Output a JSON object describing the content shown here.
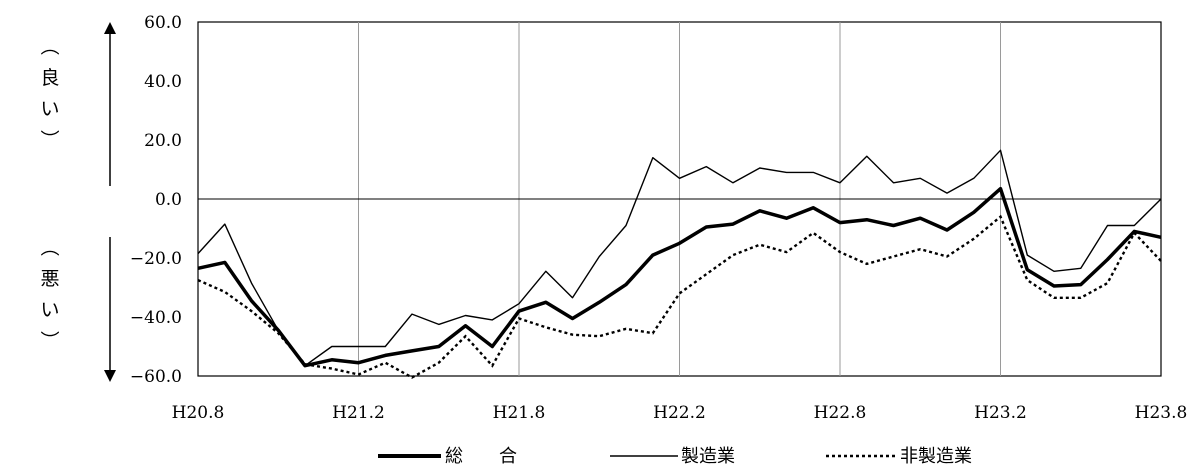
{
  "chart_data": {
    "type": "line",
    "side_label_top": "（良い）",
    "side_label_bottom": "（悪い）",
    "ylim": [
      -60,
      60
    ],
    "ytick_values": [
      60,
      40,
      20,
      0,
      -20,
      -40,
      -60
    ],
    "ytick_labels": [
      "60.0",
      "40.0",
      "20.0",
      "0.0",
      "−20.0",
      "−40.0",
      "−60.0"
    ],
    "xtick_labels": [
      "H20.8",
      "H21.2",
      "H21.8",
      "H22.2",
      "H22.8",
      "H23.2",
      "H23.8"
    ],
    "x_count": 37,
    "grid": "vertical",
    "legend_position": "bottom",
    "series": [
      {
        "name": "総　　合",
        "style": "thick",
        "values": [
          -23.5,
          -21.5,
          -34.5,
          -44.5,
          -56.5,
          -54.5,
          -55.5,
          -53.0,
          -51.5,
          -50.0,
          -43.0,
          -50.0,
          -38.0,
          -35.0,
          -40.5,
          -35.0,
          -29.0,
          -19.0,
          -15.0,
          -9.5,
          -8.5,
          -4.0,
          -6.5,
          -3.0,
          -8.0,
          -7.0,
          -9.0,
          -6.5,
          -10.5,
          -4.5,
          3.5,
          -24.0,
          -29.5,
          -29.0,
          -20.5,
          -11.0,
          -13.0
        ]
      },
      {
        "name": "製造業",
        "style": "thin",
        "values": [
          -18.5,
          -8.5,
          -28.5,
          -44.5,
          -56.5,
          -50.0,
          -50.0,
          -50.0,
          -39.0,
          -42.5,
          -39.5,
          -41.0,
          -35.5,
          -24.5,
          -33.5,
          -19.5,
          -9.0,
          14.0,
          7.0,
          11.0,
          5.5,
          10.5,
          9.0,
          9.0,
          5.5,
          14.5,
          5.5,
          7.0,
          2.0,
          7.0,
          16.5,
          -19.0,
          -24.5,
          -23.5,
          -9.0,
          -9.0,
          0.0
        ]
      },
      {
        "name": "非製造業",
        "style": "dotted",
        "values": [
          -27.5,
          -31.5,
          -38.0,
          -45.5,
          -56.0,
          -57.5,
          -59.5,
          -55.5,
          -60.5,
          -55.5,
          -46.5,
          -56.5,
          -40.5,
          -43.5,
          -46.0,
          -46.5,
          -44.0,
          -45.5,
          -32.0,
          -25.5,
          -19.0,
          -15.5,
          -18.0,
          -11.5,
          -18.0,
          -22.0,
          -19.5,
          -17.0,
          -19.5,
          -13.5,
          -6.0,
          -27.5,
          -33.5,
          -33.5,
          -28.5,
          -11.5,
          -21.0
        ]
      }
    ]
  }
}
